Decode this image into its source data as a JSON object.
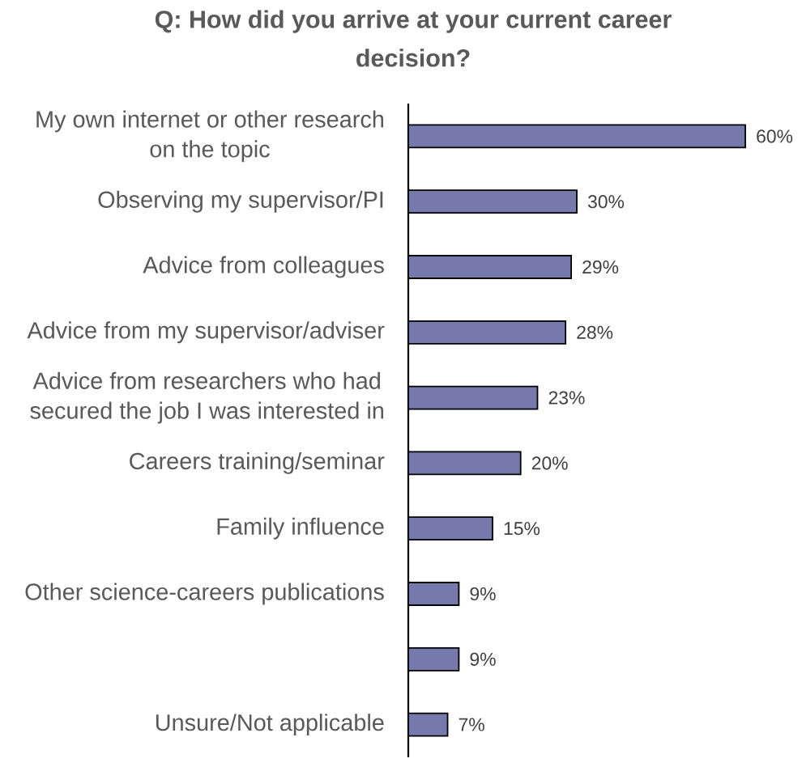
{
  "chart_data": {
    "type": "bar",
    "orientation": "horizontal",
    "title": "Q: How did you arrive at your current career decision?",
    "categories": [
      "My own internet or other research on the topic",
      "Observing my supervisor/PI",
      "Advice from colleagues",
      "Advice from my supervisor/adviser",
      "Advice from researchers who had secured the job I was interested in",
      "Careers training/seminar",
      "Family influence",
      "Other science-careers publications",
      null,
      "Unsure/Not applicable"
    ],
    "values": [
      60,
      30,
      29,
      28,
      23,
      20,
      15,
      9,
      9,
      7
    ],
    "value_labels": [
      "60%",
      "30%",
      "29%",
      "28%",
      "23%",
      "20%",
      "15%",
      "9%",
      "9%",
      "7%"
    ],
    "color": "#7579ab"
  }
}
